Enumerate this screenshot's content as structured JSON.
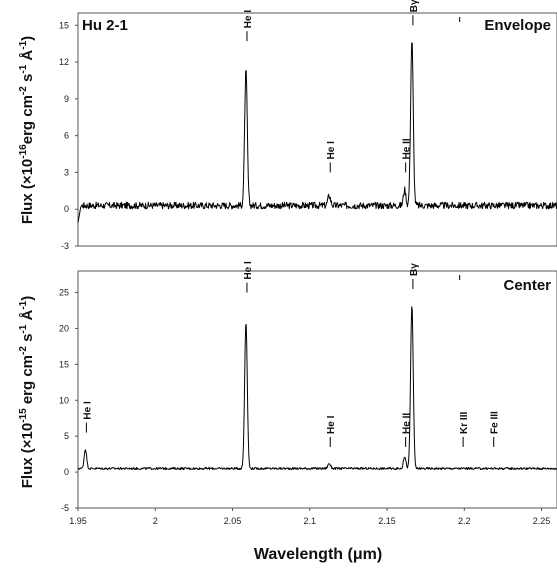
{
  "figure": {
    "xlabel": "Wavelength (μm)",
    "xlabel_prefix": "Wavelength (",
    "xlabel_unit": "μm",
    "xlabel_suffix": ")"
  },
  "chart_data": [
    {
      "type": "line",
      "panel_label": "Hu 2-1",
      "region_label": "Envelope",
      "ylabel": "Flux (×10-16erg cm-2 s-1 Å-1)",
      "ylabel_parts": {
        "a": "Flux (×10",
        "e1": "-16",
        "b": "erg cm",
        "e2": "-2",
        "c": " s",
        "e3": "-1",
        "d": " Å",
        "e4": "-1",
        "f": ")"
      },
      "xlim": [
        1.95,
        2.26
      ],
      "ylim": [
        -3,
        16
      ],
      "yticks": [
        -3,
        0,
        3,
        6,
        9,
        12,
        15
      ],
      "baseline": 0.3,
      "start_dip": -1.1,
      "lines": [
        {
          "x": 2.0587,
          "peak": 11.0,
          "width": 0.00085,
          "label": "He I",
          "label_y": 13.7
        },
        {
          "x": 2.1126,
          "peak": 0.8,
          "width": 0.0009,
          "label": "He I",
          "label_y": 3.0
        },
        {
          "x": 2.1614,
          "peak": 1.3,
          "width": 0.0008,
          "label": "He II",
          "label_y": 3.0
        },
        {
          "x": 2.1661,
          "peak": 13.5,
          "width": 0.00085,
          "label": "Bγ",
          "label_y": 15.0
        }
      ],
      "extra_marks": [
        {
          "x": 2.197,
          "label": ""
        }
      ]
    },
    {
      "type": "line",
      "panel_label": "",
      "region_label": "Center",
      "ylabel": "Flux (×10-15 erg cm-2 s-1 Å-1)",
      "ylabel_parts": {
        "a": "Flux (×10",
        "e1": "-15",
        "b": " erg cm",
        "e2": "-2",
        "c": " s",
        "e3": "-1",
        "d": " Å",
        "e4": "-1",
        "f": ")"
      },
      "xlim": [
        1.95,
        2.26
      ],
      "ylim": [
        -5,
        28
      ],
      "yticks": [
        -5,
        0,
        5,
        10,
        15,
        20,
        25
      ],
      "xticks": [
        1.95,
        2.0,
        2.05,
        2.1,
        2.15,
        2.2,
        2.25
      ],
      "xticklabels": [
        "1.95",
        "2",
        "2.05",
        "2.1",
        "2.15",
        "2.2",
        "2.25"
      ],
      "baseline": 0.5,
      "lines": [
        {
          "x": 1.9548,
          "peak": 2.7,
          "width": 0.0008,
          "label": "He I",
          "label_y": 5.5
        },
        {
          "x": 2.0587,
          "peak": 20.5,
          "width": 0.00085,
          "label": "He I",
          "label_y": 25.0
        },
        {
          "x": 2.1126,
          "peak": 0.7,
          "width": 0.0009,
          "label": "He I",
          "label_y": 3.5
        },
        {
          "x": 2.1614,
          "peak": 1.7,
          "width": 0.0008,
          "label": "He II",
          "label_y": 3.5
        },
        {
          "x": 2.1661,
          "peak": 22.8,
          "width": 0.00085,
          "label": "Bγ",
          "label_y": 25.5
        },
        {
          "x": 2.1986,
          "peak": 0.0,
          "width": 0.0008,
          "label": "Kr III",
          "label_y": 3.5
        },
        {
          "x": 2.2184,
          "peak": 0.0,
          "width": 0.0008,
          "label": "Fe III",
          "label_y": 3.5
        }
      ],
      "extra_marks": [
        {
          "x": 2.197,
          "label": ""
        }
      ]
    }
  ]
}
